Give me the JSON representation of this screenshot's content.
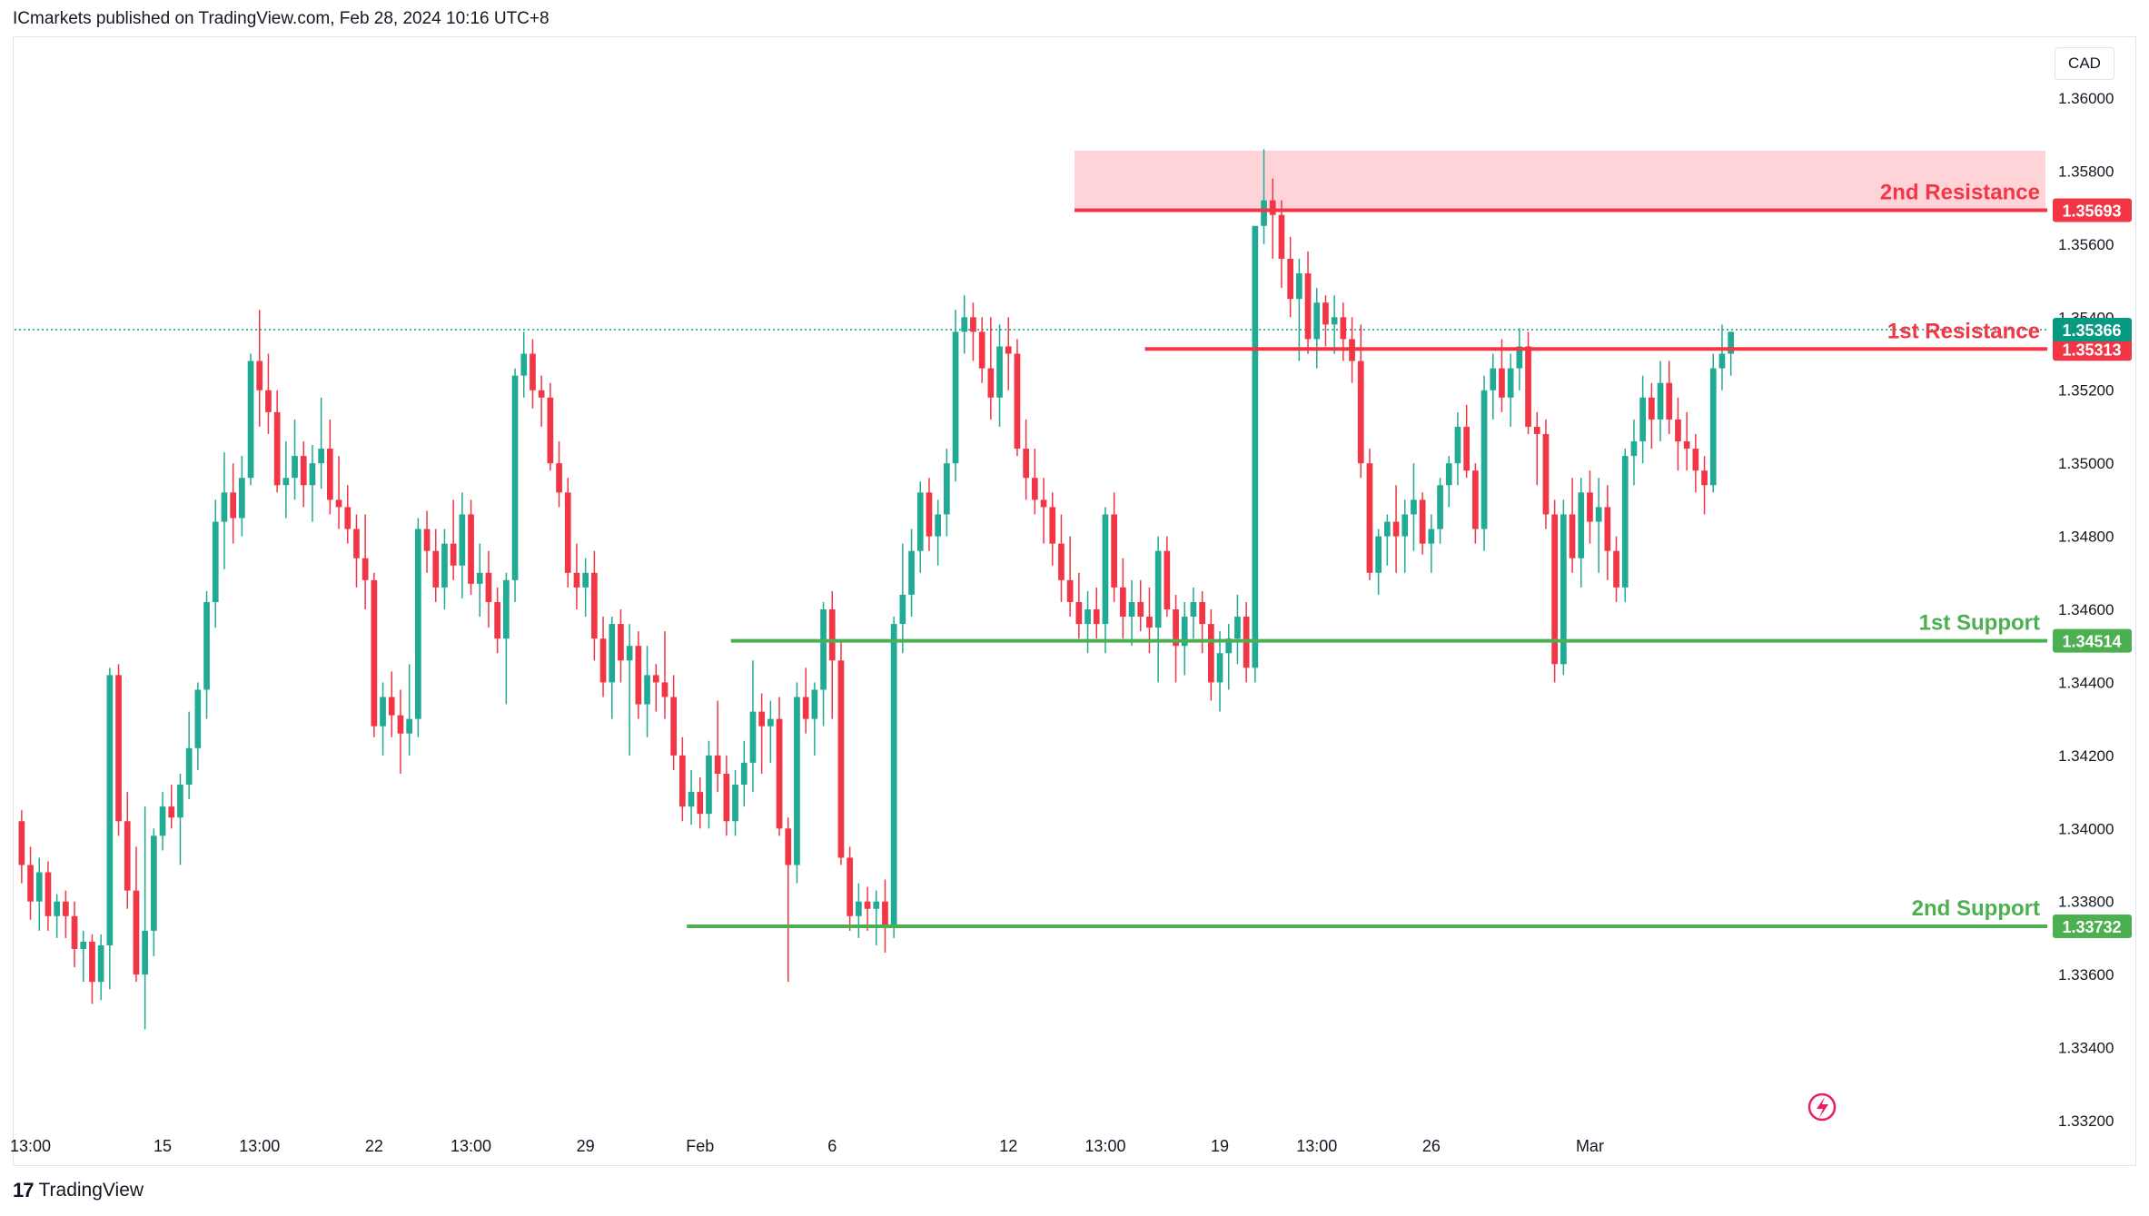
{
  "header": {
    "publisher_text": "ICmarkets published on TradingView.com, Feb 28, 2024 10:16 UTC+8"
  },
  "footer": {
    "logo_glyph": "17",
    "brand": "TradingView"
  },
  "currency_label": "CAD",
  "colors": {
    "up": "#22ab94",
    "down": "#f23645",
    "resistance": "#f23645",
    "support": "#4caf50",
    "zone": "#ffcdd2",
    "last": "#089981"
  },
  "chart_data": {
    "type": "candlestick",
    "instrument_quote_currency": "CAD",
    "ylim": [
      1.332,
      1.361
    ],
    "y_ticks": [
      "1.36000",
      "1.35800",
      "1.35600",
      "1.35400",
      "1.35200",
      "1.35000",
      "1.34800",
      "1.34600",
      "1.34400",
      "1.34200",
      "1.34000",
      "1.33800",
      "1.33600",
      "1.33400",
      "1.33200"
    ],
    "x_ticks": [
      {
        "label": "13:00",
        "bar": 1
      },
      {
        "label": "15",
        "bar": 16
      },
      {
        "label": "13:00",
        "bar": 27
      },
      {
        "label": "22",
        "bar": 40
      },
      {
        "label": "13:00",
        "bar": 51
      },
      {
        "label": "29",
        "bar": 64
      },
      {
        "label": "Feb",
        "bar": 77
      },
      {
        "label": "6",
        "bar": 92
      },
      {
        "label": "12",
        "bar": 112
      },
      {
        "label": "13:00",
        "bar": 123
      },
      {
        "label": "19",
        "bar": 136
      },
      {
        "label": "13:00",
        "bar": 147
      },
      {
        "label": "26",
        "bar": 160
      },
      {
        "label": "Mar",
        "bar": 178
      }
    ],
    "levels": [
      {
        "name": "2nd Resistance",
        "value": 1.35693,
        "label": "1.35693",
        "kind": "resistance",
        "start_bar": 120
      },
      {
        "name": "1st Resistance",
        "value": 1.35313,
        "label": "1.35313",
        "kind": "resistance",
        "start_bar": 128
      },
      {
        "name": "1st Support",
        "value": 1.34514,
        "label": "1.34514",
        "kind": "support",
        "start_bar": 81
      },
      {
        "name": "2nd Support",
        "value": 1.33732,
        "label": "1.33732",
        "kind": "support",
        "start_bar": 76
      }
    ],
    "resistance_zone": {
      "from": 1.35693,
      "to": 1.35856,
      "start_bar": 120
    },
    "last_price": {
      "value": 1.35366,
      "label": "1.35366"
    },
    "bars": [
      [
        1.3402,
        1.3405,
        1.3385,
        1.339
      ],
      [
        1.339,
        1.3395,
        1.3375,
        1.338
      ],
      [
        1.338,
        1.3392,
        1.3372,
        1.3388
      ],
      [
        1.3388,
        1.3391,
        1.3372,
        1.3376
      ],
      [
        1.3376,
        1.3382,
        1.337,
        1.338
      ],
      [
        1.338,
        1.3383,
        1.337,
        1.3376
      ],
      [
        1.3376,
        1.338,
        1.3362,
        1.3367
      ],
      [
        1.3367,
        1.3372,
        1.3358,
        1.3369
      ],
      [
        1.3369,
        1.3371,
        1.3352,
        1.3358
      ],
      [
        1.3358,
        1.3371,
        1.3353,
        1.3368
      ],
      [
        1.3368,
        1.3444,
        1.3356,
        1.3442
      ],
      [
        1.3442,
        1.3445,
        1.3398,
        1.3402
      ],
      [
        1.3402,
        1.341,
        1.3378,
        1.3383
      ],
      [
        1.3383,
        1.3395,
        1.3358,
        1.336
      ],
      [
        1.336,
        1.3406,
        1.3345,
        1.3372
      ],
      [
        1.3372,
        1.34,
        1.3365,
        1.3398
      ],
      [
        1.3398,
        1.341,
        1.3394,
        1.3406
      ],
      [
        1.3406,
        1.3412,
        1.34,
        1.3403
      ],
      [
        1.3403,
        1.3415,
        1.339,
        1.3412
      ],
      [
        1.3412,
        1.3432,
        1.3408,
        1.3422
      ],
      [
        1.3422,
        1.344,
        1.3416,
        1.3438
      ],
      [
        1.3438,
        1.3465,
        1.343,
        1.3462
      ],
      [
        1.3462,
        1.349,
        1.3455,
        1.3484
      ],
      [
        1.3484,
        1.3503,
        1.3471,
        1.3492
      ],
      [
        1.3492,
        1.35,
        1.3478,
        1.3485
      ],
      [
        1.3485,
        1.3502,
        1.348,
        1.3496
      ],
      [
        1.3496,
        1.353,
        1.3494,
        1.3528
      ],
      [
        1.3528,
        1.3542,
        1.351,
        1.352
      ],
      [
        1.352,
        1.353,
        1.3508,
        1.3514
      ],
      [
        1.3514,
        1.352,
        1.3492,
        1.3494
      ],
      [
        1.3494,
        1.3506,
        1.3485,
        1.3496
      ],
      [
        1.3496,
        1.3512,
        1.349,
        1.3502
      ],
      [
        1.3502,
        1.3506,
        1.3488,
        1.3494
      ],
      [
        1.3494,
        1.3505,
        1.3484,
        1.35
      ],
      [
        1.35,
        1.3518,
        1.3493,
        1.3504
      ],
      [
        1.3504,
        1.3512,
        1.3486,
        1.349
      ],
      [
        1.349,
        1.3502,
        1.3482,
        1.3488
      ],
      [
        1.3488,
        1.3494,
        1.3478,
        1.3482
      ],
      [
        1.3482,
        1.3486,
        1.3466,
        1.3474
      ],
      [
        1.3474,
        1.3486,
        1.346,
        1.3468
      ],
      [
        1.3468,
        1.347,
        1.3425,
        1.3428
      ],
      [
        1.3428,
        1.344,
        1.342,
        1.3436
      ],
      [
        1.3436,
        1.3443,
        1.3425,
        1.3431
      ],
      [
        1.3431,
        1.3438,
        1.3415,
        1.3426
      ],
      [
        1.3426,
        1.3445,
        1.342,
        1.343
      ],
      [
        1.343,
        1.3485,
        1.3425,
        1.3482
      ],
      [
        1.3482,
        1.3487,
        1.347,
        1.3476
      ],
      [
        1.3476,
        1.3482,
        1.3462,
        1.3466
      ],
      [
        1.3466,
        1.3482,
        1.346,
        1.3478
      ],
      [
        1.3478,
        1.349,
        1.3468,
        1.3472
      ],
      [
        1.3472,
        1.3492,
        1.3463,
        1.3486
      ],
      [
        1.3486,
        1.349,
        1.3464,
        1.3467
      ],
      [
        1.3467,
        1.3478,
        1.3458,
        1.347
      ],
      [
        1.347,
        1.3476,
        1.3455,
        1.3462
      ],
      [
        1.3462,
        1.3466,
        1.3448,
        1.3452
      ],
      [
        1.3452,
        1.347,
        1.3434,
        1.3468
      ],
      [
        1.3468,
        1.3526,
        1.3462,
        1.3524
      ],
      [
        1.3524,
        1.3536,
        1.3518,
        1.353
      ],
      [
        1.353,
        1.3534,
        1.3515,
        1.352
      ],
      [
        1.352,
        1.3524,
        1.351,
        1.3518
      ],
      [
        1.3518,
        1.3522,
        1.3498,
        1.35
      ],
      [
        1.35,
        1.3506,
        1.3488,
        1.3492
      ],
      [
        1.3492,
        1.3496,
        1.3466,
        1.347
      ],
      [
        1.347,
        1.3478,
        1.346,
        1.3466
      ],
      [
        1.3466,
        1.3474,
        1.3458,
        1.347
      ],
      [
        1.347,
        1.3476,
        1.3446,
        1.3452
      ],
      [
        1.3452,
        1.3458,
        1.3436,
        1.344
      ],
      [
        1.344,
        1.3458,
        1.343,
        1.3456
      ],
      [
        1.3456,
        1.346,
        1.344,
        1.3446
      ],
      [
        1.3446,
        1.3456,
        1.342,
        1.345
      ],
      [
        1.345,
        1.3454,
        1.343,
        1.3434
      ],
      [
        1.3434,
        1.345,
        1.3425,
        1.3442
      ],
      [
        1.3442,
        1.3445,
        1.3432,
        1.344
      ],
      [
        1.344,
        1.3454,
        1.343,
        1.3436
      ],
      [
        1.3436,
        1.3442,
        1.3416,
        1.342
      ],
      [
        1.342,
        1.3425,
        1.3402,
        1.3406
      ],
      [
        1.3406,
        1.3416,
        1.3401,
        1.341
      ],
      [
        1.341,
        1.3414,
        1.34,
        1.3404
      ],
      [
        1.3404,
        1.3424,
        1.34,
        1.342
      ],
      [
        1.342,
        1.3435,
        1.341,
        1.3415
      ],
      [
        1.3415,
        1.342,
        1.3398,
        1.3402
      ],
      [
        1.3402,
        1.3416,
        1.3398,
        1.3412
      ],
      [
        1.3412,
        1.3424,
        1.3406,
        1.3418
      ],
      [
        1.3418,
        1.3446,
        1.341,
        1.3432
      ],
      [
        1.3432,
        1.3437,
        1.3415,
        1.3428
      ],
      [
        1.3428,
        1.3435,
        1.3418,
        1.343
      ],
      [
        1.343,
        1.3436,
        1.3398,
        1.34
      ],
      [
        1.34,
        1.3403,
        1.3358,
        1.339
      ],
      [
        1.339,
        1.344,
        1.3385,
        1.3436
      ],
      [
        1.3436,
        1.3444,
        1.3426,
        1.343
      ],
      [
        1.343,
        1.344,
        1.342,
        1.3438
      ],
      [
        1.3438,
        1.3462,
        1.3428,
        1.346
      ],
      [
        1.346,
        1.3465,
        1.343,
        1.3446
      ],
      [
        1.3446,
        1.3451,
        1.339,
        1.3392
      ],
      [
        1.3392,
        1.3395,
        1.3372,
        1.3376
      ],
      [
        1.3376,
        1.3385,
        1.337,
        1.338
      ],
      [
        1.338,
        1.3384,
        1.3372,
        1.3378
      ],
      [
        1.3378,
        1.3383,
        1.3368,
        1.338
      ],
      [
        1.338,
        1.3386,
        1.3366,
        1.3373
      ],
      [
        1.3373,
        1.3458,
        1.337,
        1.3456
      ],
      [
        1.3456,
        1.3478,
        1.3448,
        1.3464
      ],
      [
        1.3464,
        1.3482,
        1.3458,
        1.3476
      ],
      [
        1.3476,
        1.3495,
        1.347,
        1.3492
      ],
      [
        1.3492,
        1.3496,
        1.3476,
        1.348
      ],
      [
        1.348,
        1.349,
        1.3472,
        1.3486
      ],
      [
        1.3486,
        1.3504,
        1.348,
        1.35
      ],
      [
        1.35,
        1.3542,
        1.3495,
        1.3536
      ],
      [
        1.3536,
        1.3546,
        1.353,
        1.354
      ],
      [
        1.354,
        1.3544,
        1.3528,
        1.3536
      ],
      [
        1.3536,
        1.354,
        1.3522,
        1.3526
      ]
    ],
    "bars_part2": [
      [
        1.3526,
        1.354,
        1.3512,
        1.3518
      ],
      [
        1.3518,
        1.3538,
        1.351,
        1.3532
      ],
      [
        1.3532,
        1.354,
        1.352,
        1.353
      ],
      [
        1.353,
        1.3534,
        1.3502,
        1.3504
      ],
      [
        1.3504,
        1.3512,
        1.349,
        1.3496
      ],
      [
        1.3496,
        1.3504,
        1.3486,
        1.349
      ],
      [
        1.349,
        1.3496,
        1.3478,
        1.3488
      ],
      [
        1.3488,
        1.3492,
        1.3472,
        1.3478
      ],
      [
        1.3478,
        1.3486,
        1.3462,
        1.3468
      ],
      [
        1.3468,
        1.348,
        1.3458,
        1.3462
      ],
      [
        1.3462,
        1.347,
        1.3452,
        1.3456
      ],
      [
        1.3456,
        1.3465,
        1.3448,
        1.346
      ],
      [
        1.346,
        1.3466,
        1.3452,
        1.3456
      ],
      [
        1.3456,
        1.3488,
        1.3448,
        1.3486
      ],
      [
        1.3486,
        1.3492,
        1.3462,
        1.3466
      ],
      [
        1.3466,
        1.3474,
        1.3452,
        1.3458
      ],
      [
        1.3458,
        1.3468,
        1.345,
        1.3462
      ],
      [
        1.3462,
        1.3468,
        1.3454,
        1.3458
      ],
      [
        1.3458,
        1.3466,
        1.3448,
        1.3455
      ],
      [
        1.3455,
        1.348,
        1.344,
        1.3476
      ],
      [
        1.3476,
        1.348,
        1.3458,
        1.346
      ],
      [
        1.346,
        1.3464,
        1.344,
        1.345
      ],
      [
        1.345,
        1.3462,
        1.3442,
        1.3458
      ],
      [
        1.3458,
        1.3466,
        1.3452,
        1.3462
      ],
      [
        1.3462,
        1.3465,
        1.3448,
        1.3456
      ],
      [
        1.3456,
        1.346,
        1.3435,
        1.344
      ],
      [
        1.344,
        1.3454,
        1.3432,
        1.3448
      ],
      [
        1.3448,
        1.3456,
        1.3438,
        1.3452
      ],
      [
        1.3452,
        1.3464,
        1.3445,
        1.3458
      ],
      [
        1.3458,
        1.3462,
        1.344,
        1.3444
      ],
      [
        1.3444,
        1.3468,
        1.344,
        1.3565
      ],
      [
        1.3565,
        1.3586,
        1.356,
        1.3572
      ],
      [
        1.3572,
        1.3578,
        1.3556,
        1.3568
      ],
      [
        1.3568,
        1.3572,
        1.3548,
        1.3556
      ],
      [
        1.3556,
        1.3562,
        1.354,
        1.3545
      ],
      [
        1.3545,
        1.3556,
        1.3528,
        1.3552
      ]
    ],
    "bars_part3": [
      [
        1.3552,
        1.3558,
        1.353,
        1.3534
      ],
      [
        1.3534,
        1.3548,
        1.3526,
        1.3544
      ],
      [
        1.3544,
        1.3546,
        1.3532,
        1.3538
      ],
      [
        1.3538,
        1.3546,
        1.353,
        1.354
      ],
      [
        1.354,
        1.3544,
        1.3528,
        1.3534
      ],
      [
        1.3534,
        1.354,
        1.3522,
        1.3528
      ],
      [
        1.3528,
        1.3538,
        1.3496,
        1.35
      ],
      [
        1.35,
        1.3504,
        1.3468,
        1.347
      ],
      [
        1.347,
        1.3482,
        1.3464,
        1.348
      ],
      [
        1.348,
        1.3486,
        1.3472,
        1.3484
      ],
      [
        1.3484,
        1.3494,
        1.347,
        1.348
      ],
      [
        1.348,
        1.349,
        1.347,
        1.3486
      ],
      [
        1.3486,
        1.35,
        1.3476,
        1.349
      ],
      [
        1.349,
        1.3492,
        1.3475,
        1.3478
      ],
      [
        1.3478,
        1.3486,
        1.347,
        1.3482
      ],
      [
        1.3482,
        1.3496,
        1.3478,
        1.3494
      ],
      [
        1.3494,
        1.3502,
        1.3488,
        1.35
      ],
      [
        1.35,
        1.3514,
        1.3494,
        1.351
      ],
      [
        1.351,
        1.3516,
        1.3496,
        1.3498
      ],
      [
        1.3498,
        1.35,
        1.3478,
        1.3482
      ],
      [
        1.3482,
        1.3524,
        1.3476,
        1.352
      ],
      [
        1.352,
        1.353,
        1.3512,
        1.3526
      ],
      [
        1.3526,
        1.3534,
        1.3514,
        1.3518
      ],
      [
        1.3518,
        1.353,
        1.351,
        1.3526
      ],
      [
        1.3526,
        1.3537,
        1.352,
        1.3532
      ],
      [
        1.3532,
        1.3536,
        1.3508,
        1.351
      ],
      [
        1.351,
        1.3514,
        1.3494,
        1.3508
      ],
      [
        1.3508,
        1.3512,
        1.3482,
        1.3486
      ],
      [
        1.3486,
        1.349,
        1.344,
        1.3445
      ],
      [
        1.3445,
        1.349,
        1.3442,
        1.3486
      ],
      [
        1.3486,
        1.3496,
        1.347,
        1.3474
      ],
      [
        1.3474,
        1.3496,
        1.3466,
        1.3492
      ],
      [
        1.3492,
        1.3498,
        1.3478,
        1.3484
      ],
      [
        1.3484,
        1.3496,
        1.347,
        1.3488
      ],
      [
        1.3488,
        1.3494,
        1.3468,
        1.3476
      ],
      [
        1.3476,
        1.348,
        1.3462,
        1.3466
      ],
      [
        1.3466,
        1.3504,
        1.3462,
        1.3502
      ],
      [
        1.3502,
        1.3512,
        1.3494,
        1.3506
      ],
      [
        1.3506,
        1.3524,
        1.35,
        1.3518
      ],
      [
        1.3518,
        1.3522,
        1.3504,
        1.3512
      ],
      [
        1.3512,
        1.3528,
        1.3506,
        1.3522
      ],
      [
        1.3522,
        1.3528,
        1.3508,
        1.3512
      ],
      [
        1.3512,
        1.3518,
        1.3498,
        1.3506
      ],
      [
        1.3506,
        1.3514,
        1.3498,
        1.3504
      ],
      [
        1.3504,
        1.3508,
        1.3492,
        1.3498
      ],
      [
        1.3498,
        1.3502,
        1.3486,
        1.3494
      ],
      [
        1.3494,
        1.353,
        1.3492,
        1.3526
      ],
      [
        1.3526,
        1.3538,
        1.352,
        1.353
      ],
      [
        1.353,
        1.3536,
        1.3524,
        1.3536
      ]
    ]
  }
}
